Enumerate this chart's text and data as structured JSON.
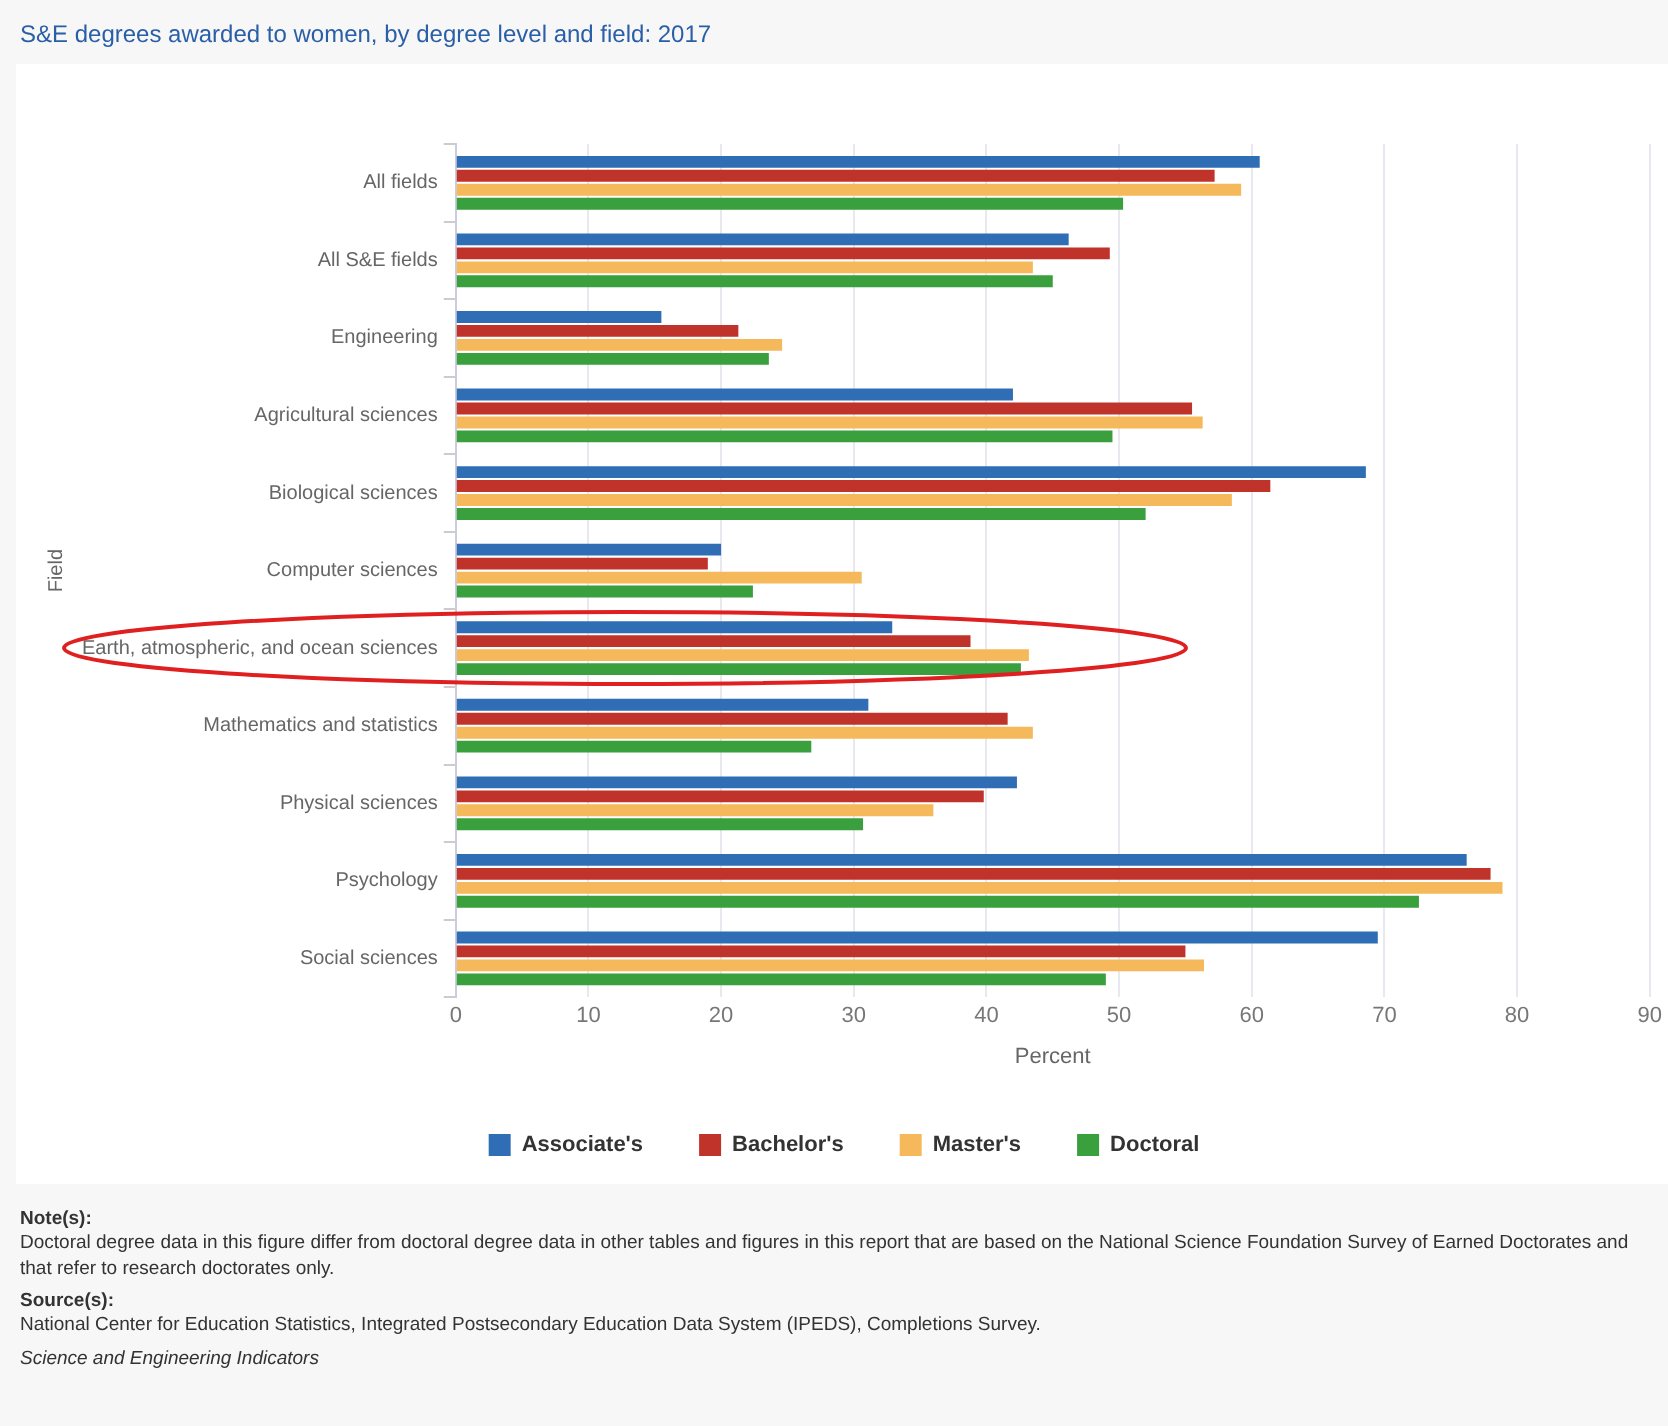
{
  "chart_data": {
    "type": "bar",
    "orientation": "horizontal",
    "title": "S&E degrees awarded to women, by degree level and field: 2017",
    "xlabel": "Percent",
    "ylabel": "Field",
    "categories": [
      "All fields",
      "All S&E fields",
      "Engineering",
      "Agricultural sciences",
      "Biological sciences",
      "Computer sciences",
      "Earth, atmospheric, and ocean sciences",
      "Mathematics and statistics",
      "Physical sciences",
      "Psychology",
      "Social sciences"
    ],
    "series": [
      {
        "name": "Associate's",
        "color": "#2f6eb5",
        "values": [
          60.6,
          46.2,
          15.5,
          42.0,
          68.6,
          20.0,
          32.9,
          31.1,
          42.3,
          76.2,
          69.5
        ]
      },
      {
        "name": "Bachelor's",
        "color": "#c0332b",
        "values": [
          57.2,
          49.3,
          21.3,
          55.5,
          61.4,
          19.0,
          38.8,
          41.6,
          39.8,
          78.0,
          55.0
        ]
      },
      {
        "name": "Master's",
        "color": "#f5b95b",
        "values": [
          59.2,
          43.5,
          24.6,
          56.3,
          58.5,
          30.6,
          43.2,
          43.5,
          36.0,
          78.9,
          56.4
        ]
      },
      {
        "name": "Doctoral",
        "color": "#3a9f3d",
        "values": [
          50.3,
          45.0,
          23.6,
          49.5,
          52.0,
          22.4,
          42.6,
          26.8,
          30.7,
          72.6,
          49.0
        ]
      }
    ],
    "xlim": [
      0,
      90
    ],
    "xticks": [
      0,
      10,
      20,
      30,
      40,
      50,
      60,
      70,
      80,
      90
    ],
    "grid": "x",
    "legend": "bottom",
    "annotations": [
      "Note(s):",
      "Doctoral degree data in this figure differ from doctoral degree data in other tables and figures in this report that are based on the National Science Foundation Survey of Earned Doctorates and that refer to research doctorates only.",
      "Source(s):",
      "National Center for Education Statistics, Integrated Postsecondary Education Data System (IPEDS), Completions Survey.",
      "Science and Engineering Indicators"
    ]
  }
}
